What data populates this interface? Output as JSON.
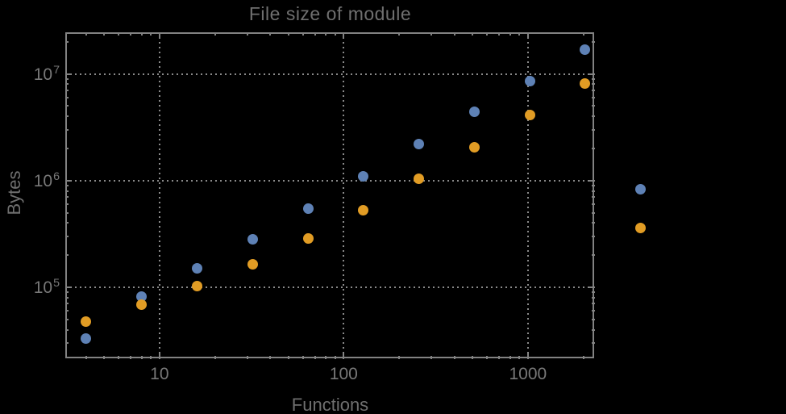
{
  "colors": {
    "background": "#000000",
    "frame": "#828282",
    "grid": "#8a8a8a",
    "text": "#6f6f6f",
    "tick_text": "#787878",
    "series_blue": "#5e81b5",
    "series_orange": "#e19c24"
  },
  "chart_data": {
    "type": "scatter",
    "title": "File size of module",
    "xlabel": "Functions",
    "ylabel": "Bytes",
    "x_scale": "log",
    "y_scale": "log",
    "xlim": [
      3.08,
      2300
    ],
    "ylim": [
      21400,
      24600000
    ],
    "grid": "dotted lines at major (decade) ticks, both axes",
    "legend_position": "none",
    "frame_ticks": "all four edges, inward, log minor ticks",
    "x_ticks": [
      {
        "label": "10",
        "value": 10
      },
      {
        "label": "100",
        "value": 100
      },
      {
        "label": "1000",
        "value": 1000
      }
    ],
    "y_ticks": [
      {
        "base": "10",
        "exp": "5",
        "value": 100000
      },
      {
        "base": "10",
        "exp": "6",
        "value": 1000000
      },
      {
        "base": "10",
        "exp": "7",
        "value": 10000000
      }
    ],
    "series": [
      {
        "name": "series-blue",
        "color": "#5e81b5",
        "points": [
          [
            4,
            33000
          ],
          [
            8,
            82000
          ],
          [
            16,
            150000
          ],
          [
            32,
            280000
          ],
          [
            64,
            550000
          ],
          [
            128,
            1100000
          ],
          [
            256,
            2200000
          ],
          [
            512,
            4400000
          ],
          [
            1024,
            8500000
          ],
          [
            2048,
            17000000
          ],
          [
            4096,
            830000
          ]
        ]
      },
      {
        "name": "series-orange",
        "color": "#e19c24",
        "points": [
          [
            4,
            48000
          ],
          [
            8,
            69000
          ],
          [
            16,
            103000
          ],
          [
            32,
            165000
          ],
          [
            64,
            285000
          ],
          [
            128,
            530000
          ],
          [
            256,
            1050000
          ],
          [
            512,
            2050000
          ],
          [
            1024,
            4100000
          ],
          [
            2048,
            8200000
          ],
          [
            4096,
            360000
          ]
        ]
      }
    ]
  }
}
